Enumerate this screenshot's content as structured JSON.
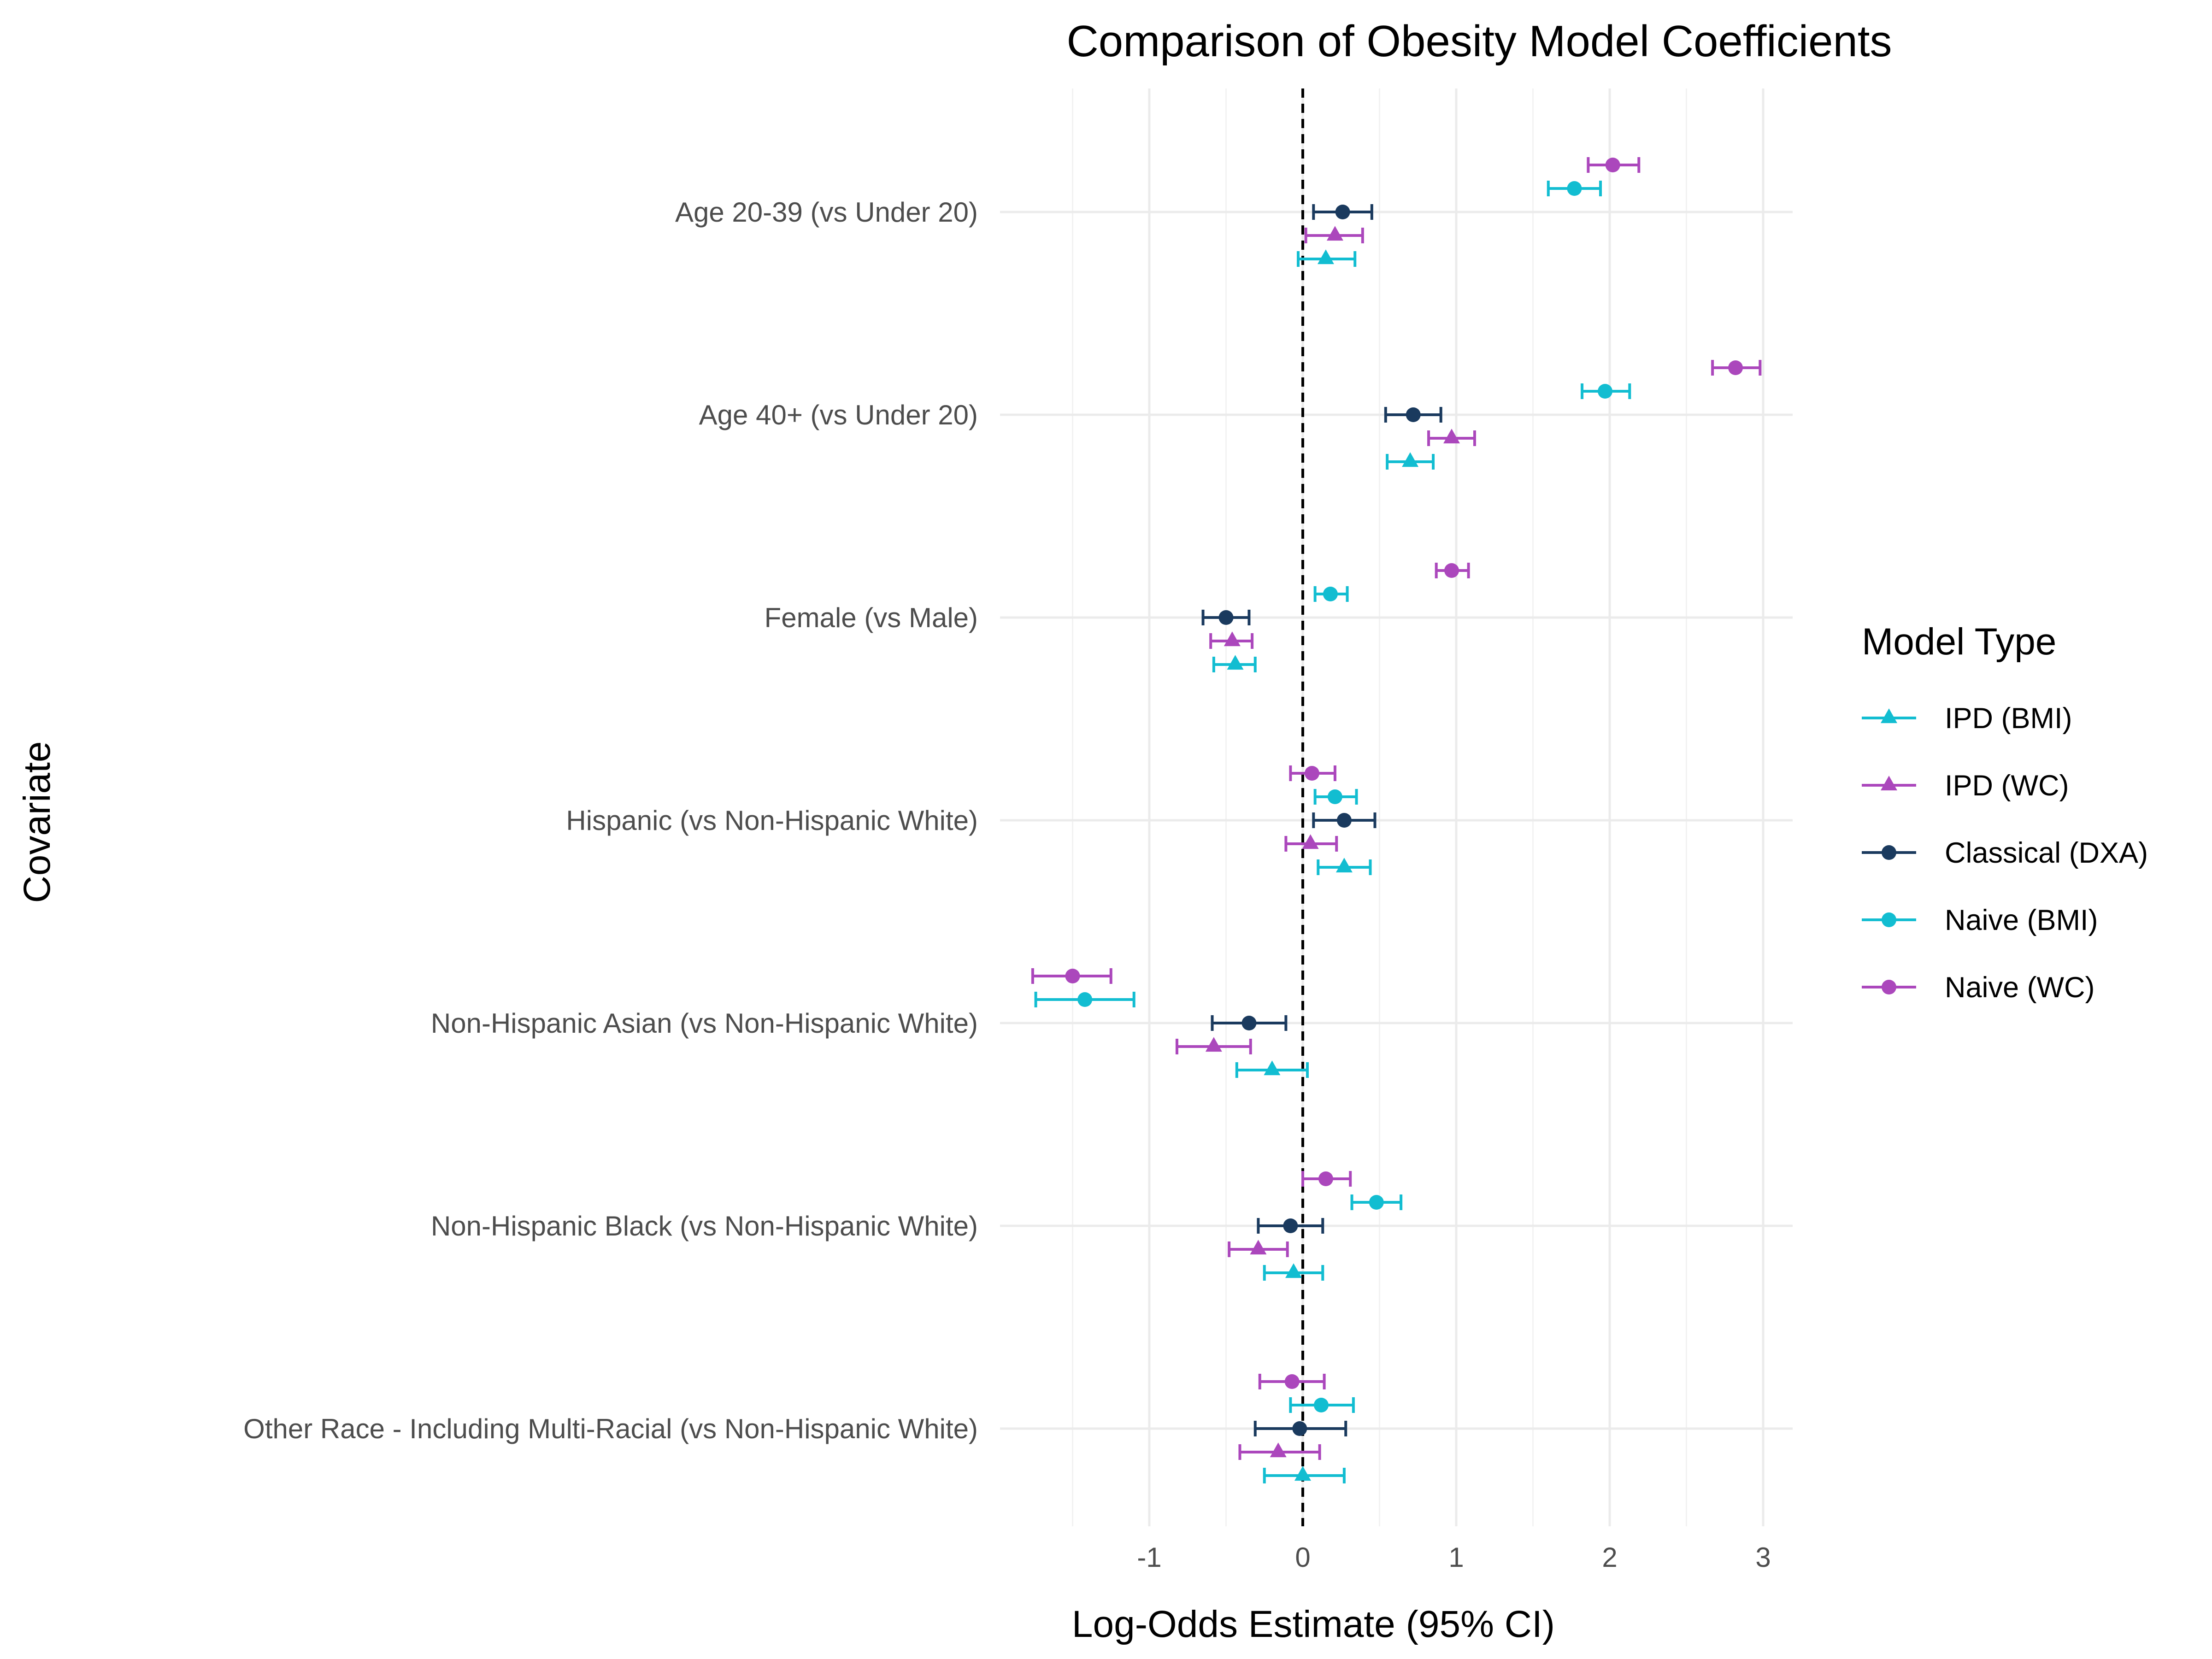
{
  "chart_data": {
    "type": "dot-whisker",
    "title": "Comparison of Obesity Model Coefficients",
    "xlabel": "Log-Odds Estimate (95% CI)",
    "ylabel": "Covariate",
    "xlim": [
      -1.95,
      3.22
    ],
    "xticks": [
      -1,
      0,
      1,
      2,
      3
    ],
    "reference_line": 0,
    "grid": true,
    "legend": {
      "title": "Model Type",
      "position": "right"
    },
    "categories": [
      "Age 20-39 (vs Under 20)",
      "Age 40+ (vs Under 20)",
      "Female (vs Male)",
      "Hispanic (vs Non-Hispanic White)",
      "Non-Hispanic Asian (vs Non-Hispanic White)",
      "Non-Hispanic Black (vs Non-Hispanic White)",
      "Other Race - Including Multi-Racial (vs Non-Hispanic White)"
    ],
    "series": [
      {
        "name": "Naive (WC)",
        "color": "#AB47BC",
        "shape": "circle",
        "estimates": [
          2.02,
          2.82,
          0.97,
          0.06,
          -1.5,
          0.15,
          -0.07
        ],
        "lower": [
          1.86,
          2.67,
          0.87,
          -0.08,
          -1.76,
          0.0,
          -0.28
        ],
        "upper": [
          2.19,
          2.98,
          1.08,
          0.21,
          -1.25,
          0.31,
          0.14
        ]
      },
      {
        "name": "Naive (BMI)",
        "color": "#12BDD1",
        "shape": "circle",
        "estimates": [
          1.77,
          1.97,
          0.18,
          0.21,
          -1.42,
          0.48,
          0.12
        ],
        "lower": [
          1.6,
          1.82,
          0.08,
          0.08,
          -1.74,
          0.32,
          -0.08
        ],
        "upper": [
          1.94,
          2.13,
          0.29,
          0.35,
          -1.1,
          0.64,
          0.33
        ]
      },
      {
        "name": "Classical (DXA)",
        "color": "#1A3A5E",
        "shape": "circle",
        "estimates": [
          0.26,
          0.72,
          -0.5,
          0.27,
          -0.35,
          -0.08,
          -0.02
        ],
        "lower": [
          0.07,
          0.54,
          -0.65,
          0.07,
          -0.59,
          -0.29,
          -0.31
        ],
        "upper": [
          0.45,
          0.9,
          -0.35,
          0.47,
          -0.11,
          0.13,
          0.28
        ]
      },
      {
        "name": "IPD (WC)",
        "color": "#AB47BC",
        "shape": "triangle",
        "estimates": [
          0.21,
          0.97,
          -0.46,
          0.05,
          -0.58,
          -0.29,
          -0.16
        ],
        "lower": [
          0.02,
          0.82,
          -0.6,
          -0.11,
          -0.82,
          -0.48,
          -0.41
        ],
        "upper": [
          0.39,
          1.12,
          -0.33,
          0.22,
          -0.34,
          -0.1,
          0.11
        ]
      },
      {
        "name": "IPD (BMI)",
        "color": "#12BDD1",
        "shape": "triangle",
        "estimates": [
          0.15,
          0.7,
          -0.44,
          0.27,
          -0.2,
          -0.06,
          0.0
        ],
        "lower": [
          -0.03,
          0.55,
          -0.58,
          0.1,
          -0.43,
          -0.25,
          -0.25
        ],
        "upper": [
          0.34,
          0.85,
          -0.31,
          0.44,
          0.03,
          0.13,
          0.27
        ]
      }
    ],
    "legend_order": [
      "IPD (BMI)",
      "IPD (WC)",
      "Classical (DXA)",
      "Naive (BMI)",
      "Naive (WC)"
    ]
  }
}
